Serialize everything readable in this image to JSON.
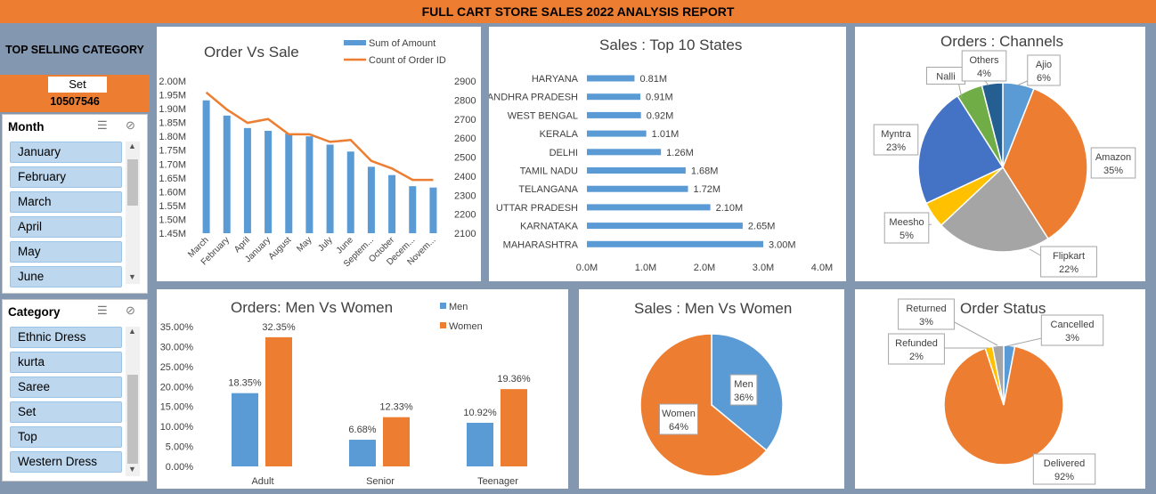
{
  "header": {
    "title": "FULL CART STORE SALES 2022 ANALYSIS REPORT"
  },
  "top_selling": {
    "label": "TOP SELLING CATEGORY",
    "category": "Set",
    "value": "10507546"
  },
  "month_slicer": {
    "title": "Month",
    "items": [
      "January",
      "February",
      "March",
      "April",
      "May",
      "June"
    ]
  },
  "category_slicer": {
    "title": "Category",
    "items": [
      "Ethnic Dress",
      "kurta",
      "Saree",
      "Set",
      "Top",
      "Western Dress"
    ]
  },
  "colors": {
    "header": "#ed7d31",
    "blue": "#5b9bd5",
    "orange": "#ed7d31",
    "gray": "#a5a5a5",
    "gold": "#ffc000",
    "darkblue": "#4472c4",
    "green": "#70ad47",
    "navy": "#255e91",
    "background": "#8497b0"
  },
  "chart_data": [
    {
      "type": "bar",
      "title": "Order Vs Sale",
      "categories": [
        "March",
        "February",
        "April",
        "January",
        "August",
        "May",
        "July",
        "June",
        "September",
        "October",
        "December",
        "November"
      ],
      "tick_labels": [
        "March",
        "February",
        "April",
        "January",
        "August",
        "May",
        "July",
        "June",
        "Septem...",
        "October",
        "Decem...",
        "Novem..."
      ],
      "series": [
        {
          "name": "Sum of Amount",
          "type": "bar",
          "axis": "left",
          "values": [
            1.93,
            1.875,
            1.83,
            1.82,
            1.81,
            1.8,
            1.77,
            1.745,
            1.69,
            1.66,
            1.62,
            1.615
          ]
        },
        {
          "name": "Count of Order ID",
          "type": "line",
          "axis": "right",
          "values": [
            2840,
            2750,
            2680,
            2700,
            2620,
            2620,
            2580,
            2590,
            2480,
            2440,
            2380,
            2380
          ]
        }
      ],
      "yticks_left": [
        "1.45M",
        "1.50M",
        "1.55M",
        "1.60M",
        "1.65M",
        "1.70M",
        "1.75M",
        "1.80M",
        "1.85M",
        "1.90M",
        "1.95M",
        "2.00M"
      ],
      "yticks_right": [
        "2100",
        "2200",
        "2300",
        "2400",
        "2500",
        "2600",
        "2700",
        "2800",
        "2900"
      ],
      "ylim_left": [
        1.45,
        2.0
      ],
      "ylim_right": [
        2100,
        2900
      ],
      "legend": "top-right"
    },
    {
      "type": "bar",
      "orientation": "horizontal",
      "title": "Sales : Top 10 States",
      "categories": [
        "HARYANA",
        "ANDHRA PRADESH",
        "WEST BENGAL",
        "KERALA",
        "DELHI",
        "TAMIL NADU",
        "TELANGANA",
        "UTTAR PRADESH",
        "KARNATAKA",
        "MAHARASHTRA"
      ],
      "values": [
        0.81,
        0.91,
        0.92,
        1.01,
        1.26,
        1.68,
        1.72,
        2.1,
        2.65,
        3.0
      ],
      "labels": [
        "0.81M",
        "0.91M",
        "0.92M",
        "1.01M",
        "1.26M",
        "1.68M",
        "1.72M",
        "2.10M",
        "2.65M",
        "3.00M"
      ],
      "xticks": [
        "0.0M",
        "1.0M",
        "2.0M",
        "3.0M",
        "4.0M"
      ],
      "xlim": [
        0,
        4
      ]
    },
    {
      "type": "pie",
      "title": "Orders : Channels",
      "slices": [
        {
          "name": "Ajio",
          "value": 6,
          "label": "6%"
        },
        {
          "name": "Amazon",
          "value": 35,
          "label": "35%"
        },
        {
          "name": "Flipkart",
          "value": 22,
          "label": "22%"
        },
        {
          "name": "Meesho",
          "value": 5,
          "label": "5%"
        },
        {
          "name": "Myntra",
          "value": 23,
          "label": "23%"
        },
        {
          "name": "Nalli",
          "value": 5,
          "label": ""
        },
        {
          "name": "Others",
          "value": 4,
          "label": "4%"
        }
      ]
    },
    {
      "type": "bar",
      "title": "Orders: Men Vs Women",
      "categories": [
        "Adult",
        "Senior",
        "Teenager"
      ],
      "series": [
        {
          "name": "Men",
          "values": [
            18.35,
            6.68,
            10.92
          ],
          "labels": [
            "18.35%",
            "6.68%",
            "10.92%"
          ]
        },
        {
          "name": "Women",
          "values": [
            32.35,
            12.33,
            19.36
          ],
          "labels": [
            "32.35%",
            "12.33%",
            "19.36%"
          ]
        }
      ],
      "yticks": [
        "0.00%",
        "5.00%",
        "10.00%",
        "15.00%",
        "20.00%",
        "25.00%",
        "30.00%",
        "35.00%"
      ],
      "ylim": [
        0,
        35
      ],
      "legend": "top-right"
    },
    {
      "type": "pie",
      "title": "Sales : Men Vs Women",
      "slices": [
        {
          "name": "Men",
          "value": 36,
          "label": "36%"
        },
        {
          "name": "Women",
          "value": 64,
          "label": "64%"
        }
      ]
    },
    {
      "type": "pie",
      "title": "Order Status",
      "slices": [
        {
          "name": "Cancelled",
          "value": 3,
          "label": "3%"
        },
        {
          "name": "Delivered",
          "value": 92,
          "label": "92%"
        },
        {
          "name": "Refunded",
          "value": 2,
          "label": "2%"
        },
        {
          "name": "Returned",
          "value": 3,
          "label": "3%"
        }
      ]
    }
  ]
}
